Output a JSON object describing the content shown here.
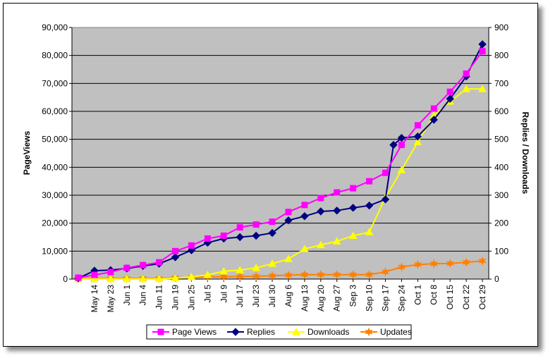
{
  "chart_data": {
    "type": "line",
    "title": "",
    "xlabel": "",
    "ylabel": "PageViews",
    "y2label": "Replies / Downloads",
    "ylim": [
      0,
      90000
    ],
    "y2lim": [
      0,
      900
    ],
    "grid": true,
    "legend_position": "bottom",
    "categories": [
      "May 14",
      "May 23",
      "Jun 1",
      "Jun 4",
      "Jun 11",
      "Jun 19",
      "Jun 25",
      "Jul 5",
      "Jul 9",
      "Jul 17",
      "Jul 23",
      "Jul 30",
      "Aug 6",
      "Aug 13",
      "Aug 20",
      "Aug 27",
      "Sep 3",
      "Sep 10",
      "Sep 17",
      "Sep 24",
      "Oct 1",
      "Oct 8",
      "Oct 15",
      "Oct 22",
      "Oct 29"
    ],
    "x_points": [
      0,
      0.5,
      1.5,
      2.5,
      3.5,
      4.5,
      5.5,
      6.5,
      7.5,
      8.5,
      9.5,
      10.5,
      11.5,
      12.5,
      13.5,
      14.5,
      15.5,
      16.5,
      17.5,
      18.5,
      19.5,
      20.5,
      21.5,
      22.5,
      23.5,
      24.5,
      25.0
    ],
    "series": [
      {
        "name": "Page Views",
        "axis": "left",
        "color": "#ff00ff",
        "marker": "square",
        "x": [
          0,
          1,
          2,
          3,
          4,
          5,
          6,
          7,
          8,
          9,
          10,
          11,
          12,
          13,
          14,
          15,
          16,
          17,
          18,
          19,
          20,
          21,
          22,
          23,
          24,
          25
        ],
        "values": [
          500,
          1500,
          2500,
          4000,
          5000,
          6000,
          10000,
          12000,
          14500,
          15500,
          18500,
          19500,
          20500,
          24000,
          26500,
          29000,
          31000,
          32500,
          35000,
          38000,
          48000,
          55000,
          61000,
          67000,
          73500,
          81500
        ]
      },
      {
        "name": "Replies",
        "axis": "right",
        "color": "#000080",
        "marker": "diamond",
        "x": [
          0,
          1,
          2,
          3,
          4,
          5,
          6,
          7,
          8,
          9,
          10,
          11,
          12,
          13,
          14,
          15,
          16,
          17,
          18,
          19,
          19.5,
          20,
          21,
          22,
          23,
          24,
          25
        ],
        "values": [
          3,
          30,
          32,
          38,
          47,
          55,
          78,
          103,
          130,
          145,
          150,
          155,
          165,
          210,
          225,
          242,
          245,
          255,
          263,
          285,
          480,
          505,
          510,
          570,
          645,
          725,
          840
        ]
      },
      {
        "name": "Downloads",
        "axis": "right",
        "color": "#ffff00",
        "marker": "triangle",
        "x": [
          0,
          1,
          2,
          3,
          4,
          5,
          6,
          7,
          8,
          9,
          10,
          11,
          12,
          13,
          14,
          15,
          16,
          17,
          18,
          19,
          20,
          21,
          22,
          23,
          24,
          25
        ],
        "values": [
          0,
          0,
          0,
          0,
          0,
          0,
          3,
          8,
          15,
          28,
          32,
          40,
          55,
          72,
          108,
          122,
          135,
          155,
          168,
          292,
          390,
          490,
          585,
          635,
          680,
          680
        ]
      },
      {
        "name": "Updates",
        "axis": "right",
        "color": "#ff8000",
        "marker": "star",
        "x": [
          0,
          1,
          2,
          3,
          4,
          5,
          6,
          7,
          8,
          9,
          10,
          11,
          12,
          13,
          14,
          15,
          16,
          17,
          18,
          19,
          20,
          21,
          22,
          23,
          24,
          25
        ],
        "values": [
          2,
          2,
          2,
          2,
          2,
          2,
          5,
          6,
          8,
          8,
          9,
          10,
          12,
          14,
          16,
          16,
          16,
          16,
          16,
          26,
          43,
          52,
          55,
          56,
          60,
          65
        ]
      }
    ],
    "yticks": [
      "0",
      "10,000",
      "20,000",
      "30,000",
      "40,000",
      "50,000",
      "60,000",
      "70,000",
      "80,000",
      "90,000"
    ],
    "y2ticks": [
      "0",
      "100",
      "200",
      "300",
      "400",
      "500",
      "600",
      "700",
      "800",
      "900"
    ]
  }
}
